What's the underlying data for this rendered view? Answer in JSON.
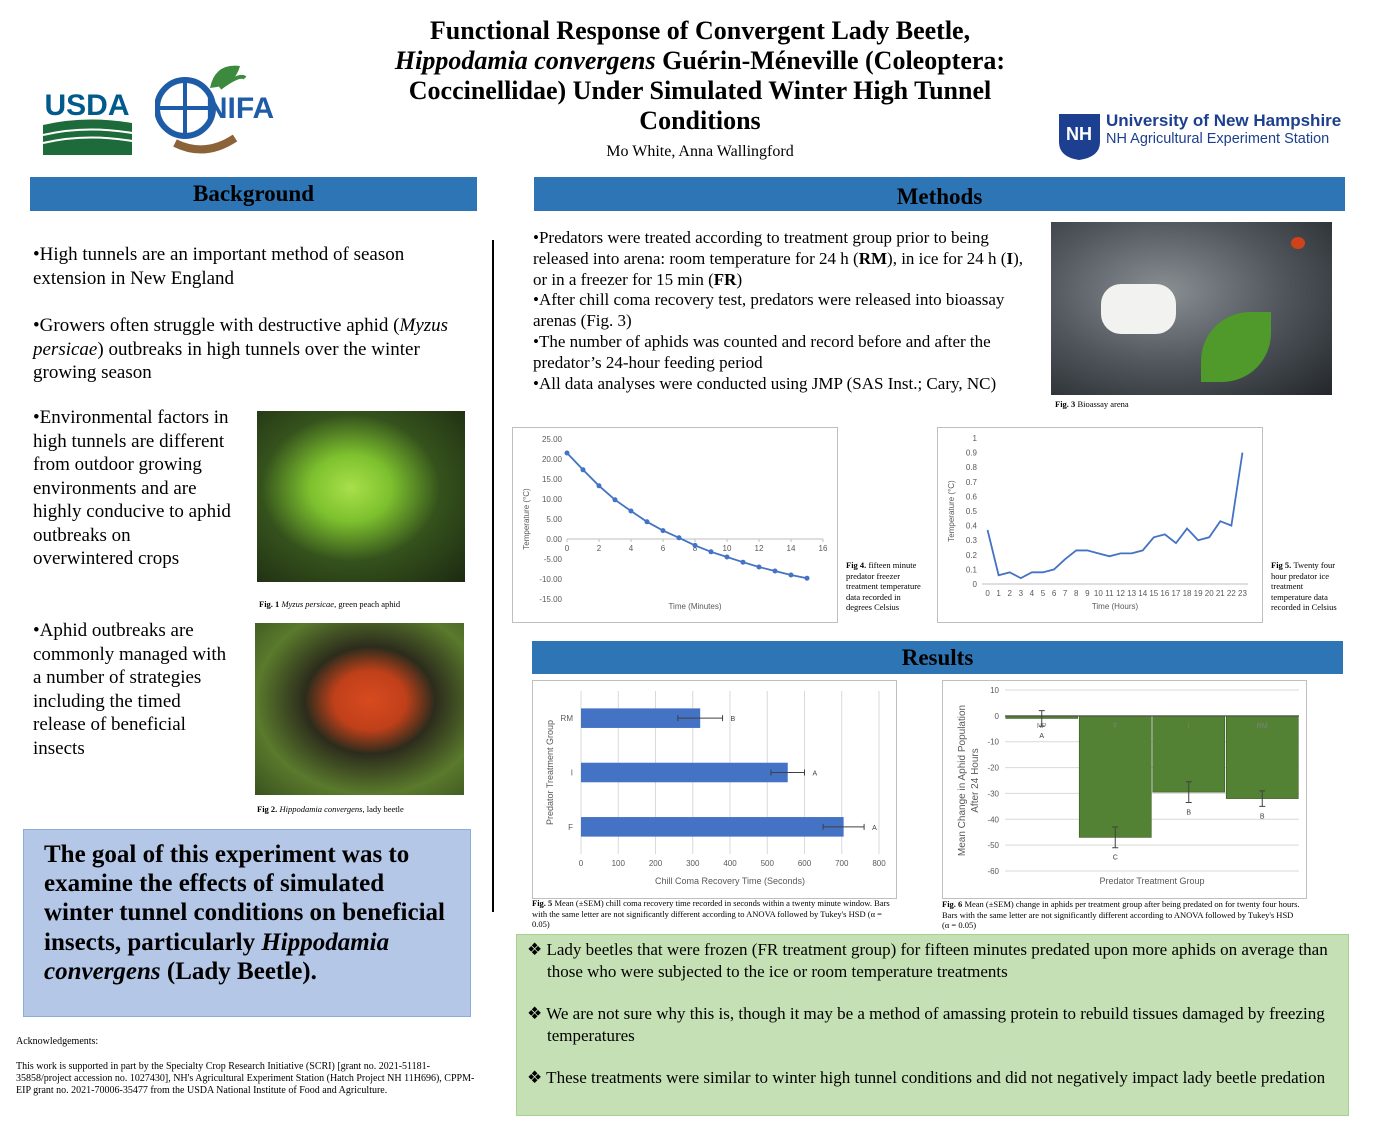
{
  "header": {
    "title": [
      [
        "Functional Response of Convergent Lady Beetle,"
      ],
      [
        {
          "i": "Hippodamia convergens"
        },
        " Guérin-Méneville (Coleoptera:"
      ],
      [
        "Coccinellidae) Under Simulated Winter High Tunnel"
      ],
      [
        "Conditions"
      ]
    ],
    "authors": "Mo White, Anna Wallingford"
  },
  "logos": {
    "usda": "USDA",
    "nifa": "NIFA",
    "unh": "University of New Hampshire",
    "station": "NH Agricultural Experiment Station"
  },
  "background": {
    "heading": "Background",
    "bullets": [
      [
        "•High tunnels are an important method of season extension in New England"
      ],
      [
        "•Growers often struggle with destructive aphid (",
        {
          "i": "Myzus persicae"
        },
        ") outbreaks in high tunnels over the winter growing season"
      ],
      [
        "•Environmental factors in high tunnels are different from outdoor growing environments and are highly conducive to aphid outbreaks on overwintered crops"
      ],
      [
        "•Aphid outbreaks are commonly managed with a number of strategies including the timed release of beneficial insects"
      ]
    ],
    "fig1": [
      {
        "b": "Fig. 1 "
      },
      {
        "i": "Myzus persicae"
      },
      ", green peach aphid"
    ],
    "fig2": [
      {
        "b": "Fig 2. "
      },
      {
        "i": "Hippodamia convergens"
      },
      ", lady beetle"
    ],
    "goal": [
      "The goal of this experiment was to examine the effects of simulated winter tunnel conditions on beneficial insects, particularly ",
      {
        "i": "Hippodamia convergens"
      },
      " (Lady Beetle)."
    ]
  },
  "acknowledgements": {
    "heading": "Acknowledgements:",
    "text": "This work is supported in part by the Specialty Crop Research Initiative (SCRI) [grant no. 2021-51181-35858/project accession no. 1027430], NH's Agricultural Experiment Station (Hatch Project NH 11H696), CPPM-EIP grant no. 2021-70006-35477 from the USDA National Institute of Food and Agriculture."
  },
  "methods": {
    "heading": "Methods",
    "bullets": [
      [
        "•Predators were treated according to treatment group prior to being released into arena: room temperature for 24 h (",
        {
          "b": "RM"
        },
        "), in ice for 24 h (",
        {
          "b": "I"
        },
        "), or in a freezer for 15 min (",
        {
          "b": "FR"
        },
        ")"
      ],
      [
        "•After chill coma recovery test, predators were released into bioassay arenas (Fig. 3)"
      ],
      [
        "•The number of aphids was counted and record before and after the predator’s 24-hour feeding period"
      ],
      [
        "•All data analyses were conducted using JMP (SAS Inst.; Cary, NC)"
      ]
    ],
    "fig3": [
      {
        "b": "Fig. 3 "
      },
      "Bioassay arena"
    ]
  },
  "results": {
    "heading": "Results",
    "bullets": [
      [
        "❖ Lady beetles that were frozen (FR treatment group) for fifteen minutes predated upon more aphids on average than those who were subjected to the ice or room temperature treatments"
      ],
      [
        "❖ We are not sure why this is, though it may be a method of amassing protein to rebuild tissues damaged by freezing temperatures"
      ],
      [
        "❖ These treatments were similar to winter high tunnel conditions and did not negatively impact lady beetle predation"
      ]
    ]
  },
  "chart_data": [
    {
      "type": "line",
      "x": [
        0,
        1,
        2,
        3,
        4,
        5,
        6,
        7,
        8,
        9,
        10,
        11,
        12,
        13,
        14,
        15
      ],
      "values": [
        21.5,
        17.3,
        13.3,
        9.8,
        7.0,
        4.3,
        2.1,
        0.3,
        -1.6,
        -3.2,
        -4.5,
        -5.8,
        -7.0,
        -8.0,
        -9.0,
        -9.8
      ],
      "color": "#4472c4",
      "xlim": [
        0,
        16
      ],
      "xticks": [
        0,
        2,
        4,
        6,
        8,
        10,
        12,
        14,
        16
      ],
      "ylim": [
        -15,
        25
      ],
      "yticks": [
        {
          "value": -15,
          "label": "-15.00"
        },
        {
          "value": -10,
          "label": "-10.00"
        },
        {
          "value": -5,
          "label": "-5.00"
        },
        {
          "value": 0,
          "label": "0.00"
        },
        {
          "value": 5,
          "label": "5.00"
        },
        {
          "value": 10,
          "label": "10.00"
        },
        {
          "value": 15,
          "label": "15.00"
        },
        {
          "value": 20,
          "label": "20.00"
        },
        {
          "value": 25,
          "label": "25.00"
        }
      ],
      "xlabel": "Time (Minutes)",
      "ylabel": "Temperature (°C)",
      "caption": [
        {
          "b": "Fig 4. "
        },
        "fifteen minute predator freezer treatment temperature data recorded in degrees Celsius"
      ]
    },
    {
      "type": "line",
      "categories": [
        "0",
        "1",
        "2",
        "3",
        "4",
        "5",
        "6",
        "7",
        "8",
        "9",
        "10",
        "11",
        "12",
        "13",
        "14",
        "15",
        "16",
        "17",
        "18",
        "19",
        "20",
        "21",
        "22",
        "23"
      ],
      "values": [
        0.37,
        0.06,
        0.08,
        0.04,
        0.08,
        0.08,
        0.1,
        0.17,
        0.23,
        0.23,
        0.21,
        0.19,
        0.21,
        0.21,
        0.23,
        0.32,
        0.34,
        0.28,
        0.38,
        0.3,
        0.32,
        0.43,
        0.4,
        0.9
      ],
      "color": "#4472c4",
      "ylim": [
        0,
        1
      ],
      "yticks": [
        0,
        0.1,
        0.2,
        0.3,
        0.4,
        0.5,
        0.6,
        0.7,
        0.8,
        0.9,
        1
      ],
      "xlabel": "Time (Hours)",
      "ylabel": "Temperature (°C)",
      "caption": [
        {
          "b": "Fig 5. "
        },
        "Twenty four hour predator ice treatment temperature data recorded in Celsius"
      ]
    },
    {
      "type": "hbar",
      "categories": [
        "RM",
        "I",
        "F"
      ],
      "values": [
        320,
        555,
        705
      ],
      "errors": [
        60,
        45,
        55
      ],
      "letters": [
        "B",
        "A",
        "A"
      ],
      "color": "#4472c4",
      "xlim": [
        0,
        800
      ],
      "xticks": [
        0,
        100,
        200,
        300,
        400,
        500,
        600,
        700,
        800
      ],
      "grid": true,
      "xlabel": "Chill Coma Recovery Time (Seconds)",
      "ylabel": "Predator Treatment Group",
      "caption": [
        {
          "b": "Fig. 5 "
        },
        "Mean (±SEM) chill coma recovery time recorded in seconds within a twenty minute window. Bars with the same letter are not significantly different according to ANOVA followed by Tukey's HSD (α = 0.05)"
      ]
    },
    {
      "type": "bar",
      "categories": [
        "NP",
        "F",
        "I",
        "RM"
      ],
      "values": [
        -1,
        -47,
        -29.5,
        -32
      ],
      "errors": [
        3,
        4,
        4,
        3
      ],
      "letters": [
        "A",
        "C",
        "B",
        "B"
      ],
      "color": "#548235",
      "ylim": [
        -60,
        10
      ],
      "yticks": [
        -60,
        -50,
        -40,
        -30,
        -20,
        -10,
        0,
        10
      ],
      "grid": true,
      "xlabel": "Predator Treatment Group",
      "ylabel": [
        "Mean Change in Aphid Population",
        "After 24 Hours"
      ],
      "caption": [
        {
          "b": "Fig. 6 "
        },
        "Mean (±SEM) change in aphids per treatment group after being predated on for twenty four hours. Bars with the same letter are not significantly different according to ANOVA followed by Tukey's HSD (α = 0.05)"
      ]
    }
  ]
}
